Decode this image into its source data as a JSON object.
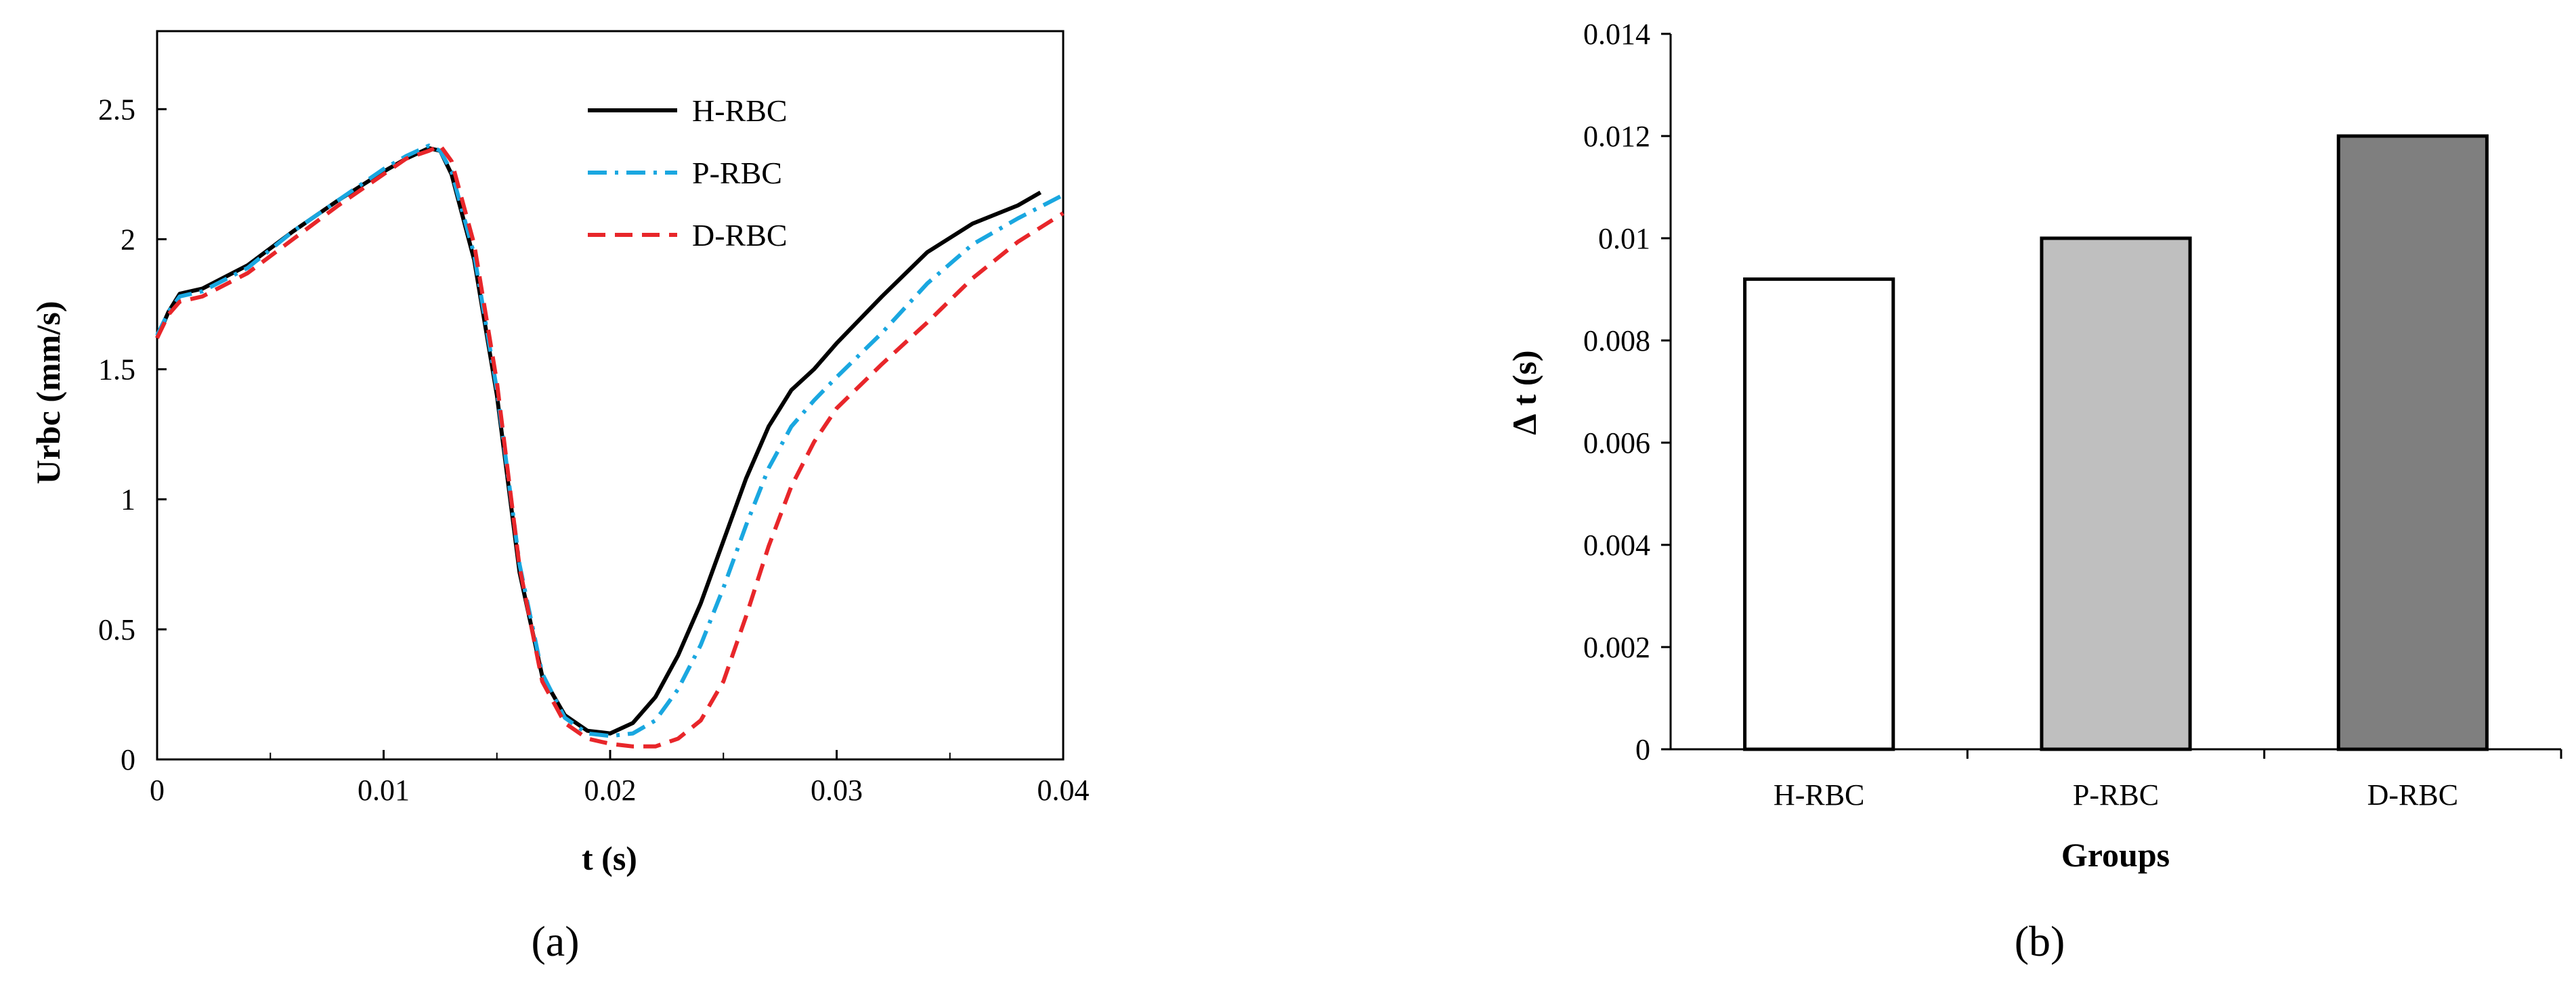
{
  "chart_data": [
    {
      "type": "line",
      "panel_label": "(a)",
      "xlabel": "t (s)",
      "ylabel": "Urbc (mm/s)",
      "xlim": [
        0,
        0.04
      ],
      "ylim": [
        0,
        2.8
      ],
      "xticks": [
        "0",
        "0.01",
        "0.02",
        "0.03",
        "0.04"
      ],
      "yticks": [
        "0",
        "0.5",
        "1",
        "1.5",
        "2",
        "2.5"
      ],
      "legend_position": "top-right",
      "grid": false,
      "series": [
        {
          "name": "H-RBC",
          "color": "#000000",
          "dash": "solid",
          "x": [
            0,
            0.0005,
            0.001,
            0.002,
            0.004,
            0.006,
            0.008,
            0.01,
            0.011,
            0.012,
            0.0125,
            0.013,
            0.014,
            0.015,
            0.016,
            0.017,
            0.018,
            0.019,
            0.02,
            0.021,
            0.022,
            0.023,
            0.024,
            0.025,
            0.026,
            0.027,
            0.028,
            0.029,
            0.03,
            0.032,
            0.034,
            0.036,
            0.038,
            0.039
          ],
          "y": [
            1.62,
            1.72,
            1.79,
            1.81,
            1.9,
            2.03,
            2.15,
            2.26,
            2.31,
            2.35,
            2.34,
            2.25,
            1.92,
            1.4,
            0.72,
            0.32,
            0.17,
            0.11,
            0.1,
            0.14,
            0.24,
            0.4,
            0.6,
            0.84,
            1.08,
            1.28,
            1.42,
            1.5,
            1.6,
            1.78,
            1.95,
            2.06,
            2.13,
            2.18
          ]
        },
        {
          "name": "P-RBC",
          "color": "#1aa7e0",
          "dash": "dashdot",
          "x": [
            0,
            0.0005,
            0.001,
            0.002,
            0.004,
            0.006,
            0.008,
            0.01,
            0.011,
            0.012,
            0.0125,
            0.013,
            0.014,
            0.015,
            0.016,
            0.017,
            0.018,
            0.019,
            0.02,
            0.021,
            0.022,
            0.023,
            0.024,
            0.025,
            0.026,
            0.027,
            0.028,
            0.029,
            0.03,
            0.032,
            0.034,
            0.036,
            0.038,
            0.04
          ],
          "y": [
            1.63,
            1.72,
            1.78,
            1.8,
            1.89,
            2.03,
            2.15,
            2.27,
            2.32,
            2.36,
            2.34,
            2.26,
            1.94,
            1.42,
            0.75,
            0.33,
            0.16,
            0.1,
            0.09,
            0.1,
            0.15,
            0.27,
            0.44,
            0.66,
            0.9,
            1.12,
            1.28,
            1.38,
            1.47,
            1.64,
            1.83,
            1.98,
            2.08,
            2.17
          ]
        },
        {
          "name": "D-RBC",
          "color": "#e8262a",
          "dash": "dashed",
          "x": [
            0,
            0.0005,
            0.001,
            0.002,
            0.004,
            0.006,
            0.008,
            0.01,
            0.011,
            0.012,
            0.0125,
            0.013,
            0.014,
            0.015,
            0.016,
            0.017,
            0.018,
            0.019,
            0.02,
            0.021,
            0.022,
            0.023,
            0.024,
            0.025,
            0.026,
            0.027,
            0.028,
            0.029,
            0.03,
            0.032,
            0.034,
            0.036,
            0.038,
            0.04
          ],
          "y": [
            1.62,
            1.71,
            1.76,
            1.78,
            1.87,
            2.0,
            2.13,
            2.25,
            2.31,
            2.34,
            2.36,
            2.3,
            1.98,
            1.45,
            0.74,
            0.3,
            0.14,
            0.08,
            0.06,
            0.05,
            0.05,
            0.08,
            0.15,
            0.3,
            0.55,
            0.82,
            1.05,
            1.22,
            1.35,
            1.52,
            1.68,
            1.85,
            1.99,
            2.1
          ]
        }
      ]
    },
    {
      "type": "bar",
      "panel_label": "(b)",
      "xlabel": "Groups",
      "ylabel": "∆ t (s)",
      "ylim": [
        0,
        0.014
      ],
      "yticks": [
        "0",
        "0.002",
        "0.004",
        "0.006",
        "0.008",
        "0.01",
        "0.012",
        "0.014"
      ],
      "categories": [
        "H-RBC",
        "P-RBC",
        "D-RBC"
      ],
      "values": [
        0.0092,
        0.01,
        0.012
      ],
      "colors": [
        "#ffffff",
        "#bfbfbf",
        "#7f7f7f"
      ],
      "grid": false
    }
  ]
}
